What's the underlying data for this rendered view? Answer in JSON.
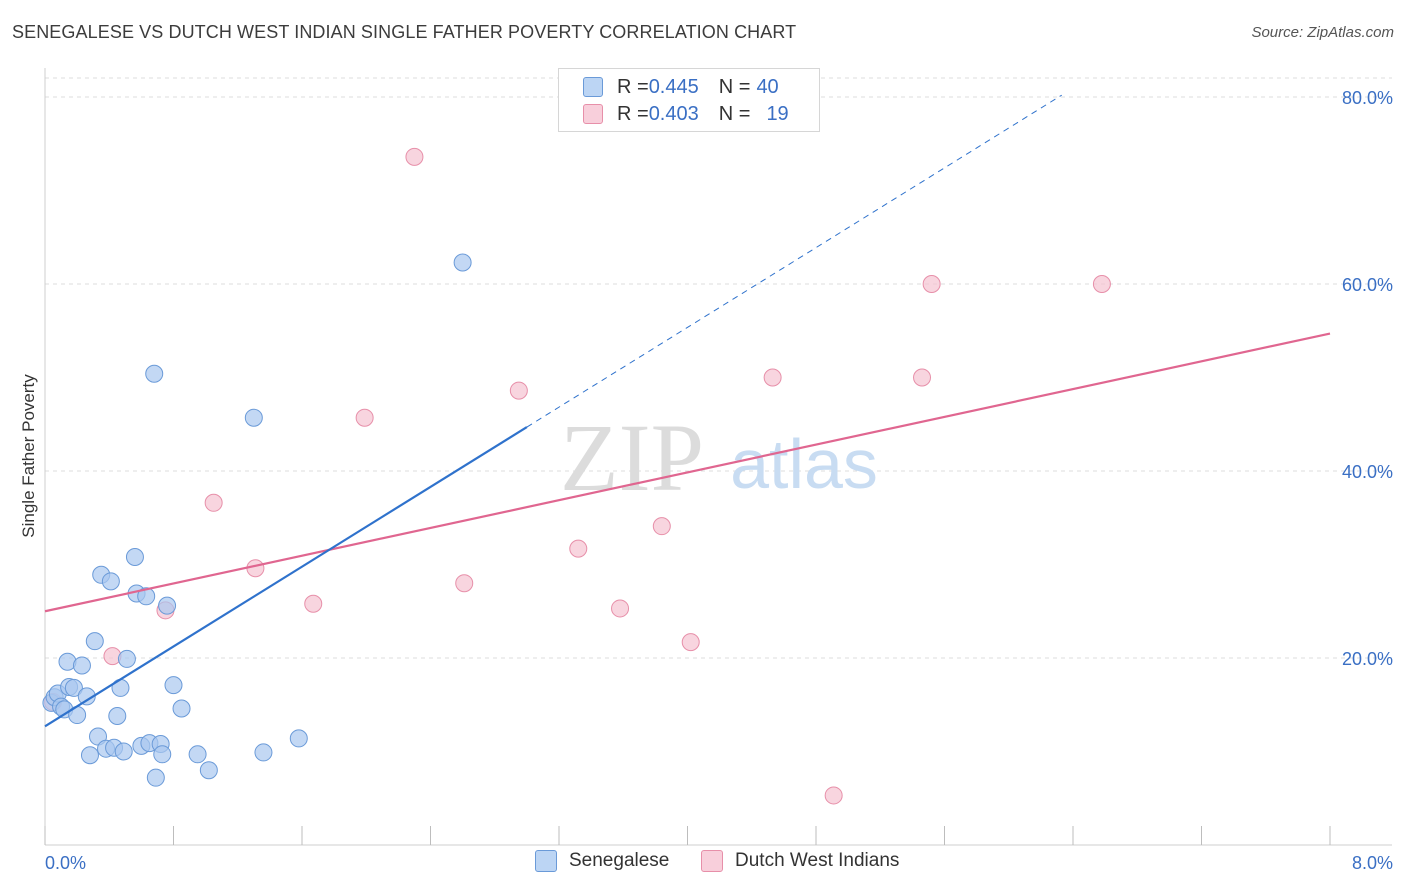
{
  "header": {
    "title": "SENEGALESE VS DUTCH WEST INDIAN SINGLE FATHER POVERTY CORRELATION CHART",
    "source": "Source: ZipAtlas.com"
  },
  "legend_stats": [
    {
      "r_label": "R = ",
      "r_value": "0.445",
      "n_label": "N = ",
      "n_value": "40",
      "color": "#a9c8f0"
    },
    {
      "r_label": "R = ",
      "r_value": "0.403",
      "n_label": "N = ",
      "n_value": "19",
      "color": "#f5b8c8"
    }
  ],
  "watermark": {
    "zip": "ZIP",
    "atlas": "atlas"
  },
  "colors": {
    "blue_fill": "#a9c8f0",
    "blue_stroke": "#6a9ad8",
    "blue_line": "#2f72cc",
    "pink_fill": "#f5c3d1",
    "pink_stroke": "#e78fa9",
    "pink_line": "#e06690",
    "axis_text": "#3a6fc4",
    "grid": "#dddddd"
  },
  "chart_data": {
    "type": "scatter",
    "title": "SENEGALESE VS DUTCH WEST INDIAN SINGLE FATHER POVERTY CORRELATION CHART",
    "ylabel": "Single Father Poverty",
    "xlabel": "",
    "xlim": [
      0,
      8
    ],
    "ylim": [
      0,
      80
    ],
    "x_tick_labels": [
      "0.0%",
      "8.0%"
    ],
    "y_tick_labels": [
      "20.0%",
      "40.0%",
      "60.0%",
      "80.0%"
    ],
    "y_ticks": [
      20,
      40,
      60,
      80
    ],
    "series": [
      {
        "name": "Senegalese",
        "points": [
          [
            0.04,
            15.2
          ],
          [
            0.06,
            15.8
          ],
          [
            0.08,
            16.2
          ],
          [
            0.1,
            14.8
          ],
          [
            0.12,
            14.5
          ],
          [
            0.14,
            19.6
          ],
          [
            0.15,
            16.9
          ],
          [
            0.18,
            16.8
          ],
          [
            0.2,
            13.9
          ],
          [
            0.23,
            19.2
          ],
          [
            0.26,
            15.9
          ],
          [
            0.28,
            9.6
          ],
          [
            0.31,
            21.8
          ],
          [
            0.33,
            11.6
          ],
          [
            0.35,
            28.9
          ],
          [
            0.38,
            10.3
          ],
          [
            0.41,
            28.2
          ],
          [
            0.43,
            10.4
          ],
          [
            0.45,
            13.8
          ],
          [
            0.47,
            16.8
          ],
          [
            0.49,
            10.0
          ],
          [
            0.51,
            19.9
          ],
          [
            0.56,
            30.8
          ],
          [
            0.57,
            26.9
          ],
          [
            0.6,
            10.6
          ],
          [
            0.63,
            26.6
          ],
          [
            0.65,
            10.9
          ],
          [
            0.68,
            50.4
          ],
          [
            0.69,
            7.2
          ],
          [
            0.72,
            10.8
          ],
          [
            0.73,
            9.7
          ],
          [
            0.76,
            25.6
          ],
          [
            0.8,
            17.1
          ],
          [
            0.85,
            14.6
          ],
          [
            0.95,
            9.7
          ],
          [
            1.02,
            8.0
          ],
          [
            1.3,
            45.7
          ],
          [
            1.36,
            9.9
          ],
          [
            1.58,
            11.4
          ],
          [
            2.6,
            62.3
          ]
        ]
      },
      {
        "name": "Dutch West Indians",
        "points": [
          [
            0.05,
            15.3
          ],
          [
            0.42,
            20.2
          ],
          [
            0.75,
            25.1
          ],
          [
            1.05,
            36.6
          ],
          [
            1.31,
            29.6
          ],
          [
            1.67,
            25.8
          ],
          [
            1.99,
            45.7
          ],
          [
            2.3,
            73.6
          ],
          [
            2.61,
            28.0
          ],
          [
            2.95,
            48.6
          ],
          [
            3.32,
            31.7
          ],
          [
            3.58,
            25.3
          ],
          [
            3.84,
            34.1
          ],
          [
            4.02,
            21.7
          ],
          [
            4.53,
            50.0
          ],
          [
            4.91,
            5.3
          ],
          [
            5.52,
            60.0
          ],
          [
            5.46,
            50.0
          ],
          [
            6.58,
            60.0
          ]
        ]
      }
    ],
    "trend_lines": [
      {
        "series": "Senegalese",
        "x0": 0.0,
        "y0": 12.7,
        "x1": 3.0,
        "y1": 44.7,
        "dashed_to_x": 6.33,
        "dashed_to_y": 80.2
      },
      {
        "series": "Dutch West Indians",
        "x0": 0.0,
        "y0": 25.0,
        "x1": 8.0,
        "y1": 54.7
      }
    ],
    "grid": true,
    "legend_position": "top-center"
  }
}
